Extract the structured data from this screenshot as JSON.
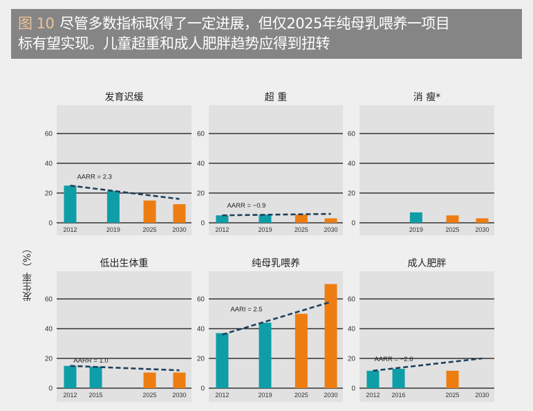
{
  "header": {
    "figure_label": "图 10",
    "title_line1": "尽管多数指标取得了一定进展，但仅2025年纯母乳喂养一项目",
    "title_line2": "标有望实现。儿童超重和成人肥胖趋势应得到扭转"
  },
  "colors": {
    "observed": "#0f9ea8",
    "target": "#ee7d11",
    "trend": "#1f3f5a",
    "panel_bg": "#e1e1e1",
    "header_bg": "#858585"
  },
  "y_axis_label": "发生率（%）",
  "chart_data": [
    {
      "type": "bar",
      "title": "发育迟缓",
      "ylim": [
        0,
        70
      ],
      "yticks": [
        0,
        20,
        40,
        60
      ],
      "categories": [
        "2012",
        "2019",
        "2025",
        "2030"
      ],
      "values": [
        25,
        21.5,
        15,
        12.5
      ],
      "kind": [
        "observed",
        "observed",
        "target",
        "target"
      ],
      "trend": {
        "label": "AARR = 2.3",
        "from": 25,
        "to": 16
      }
    },
    {
      "type": "bar",
      "title": "超 重",
      "ylim": [
        0,
        70
      ],
      "yticks": [
        0,
        20,
        40,
        60
      ],
      "categories": [
        "2012",
        "2019",
        "2025",
        "2030"
      ],
      "values": [
        5,
        5.5,
        5.5,
        3
      ],
      "kind": [
        "observed",
        "observed",
        "target",
        "target"
      ],
      "trend": {
        "label": "AARR = −0.9",
        "from": 5,
        "to": 6
      }
    },
    {
      "type": "bar",
      "title": "消 瘦*",
      "ylim": [
        0,
        70
      ],
      "yticks": [
        0,
        20,
        40,
        60
      ],
      "categories": [
        "",
        "2019",
        "2025",
        "2030"
      ],
      "values": [
        null,
        7,
        5,
        3
      ],
      "kind": [
        "observed",
        "observed",
        "target",
        "target"
      ],
      "trend": null
    },
    {
      "type": "bar",
      "title": "低出生体重",
      "ylim": [
        0,
        70
      ],
      "yticks": [
        0,
        20,
        40,
        60
      ],
      "categories": [
        "2012",
        "2015",
        "2025",
        "2030"
      ],
      "values": [
        15,
        14.5,
        10.5,
        10.5
      ],
      "kind": [
        "observed",
        "observed",
        "target",
        "target"
      ],
      "trend": {
        "label": "AARR = 1.0",
        "from": 15,
        "to": 12
      }
    },
    {
      "type": "bar",
      "title": "纯母乳喂养",
      "ylim": [
        0,
        70
      ],
      "yticks": [
        0,
        20,
        40,
        60
      ],
      "categories": [
        "2012",
        "2019",
        "2025",
        "2030"
      ],
      "values": [
        37,
        44,
        50,
        70
      ],
      "kind": [
        "observed",
        "observed",
        "target",
        "target"
      ],
      "trend": {
        "label": "AARI = 2.5",
        "from": 36,
        "to": 58
      }
    },
    {
      "type": "bar",
      "title": "成人肥胖",
      "ylim": [
        0,
        70
      ],
      "yticks": [
        0,
        20,
        40,
        60
      ],
      "categories": [
        "2012",
        "2016",
        "2025",
        "2030"
      ],
      "values": [
        11.7,
        13,
        11.7,
        null
      ],
      "kind": [
        "observed",
        "observed",
        "target",
        "target"
      ],
      "trend": {
        "label": "AARR = −2.6",
        "from": 11.7,
        "to": 20
      }
    }
  ]
}
